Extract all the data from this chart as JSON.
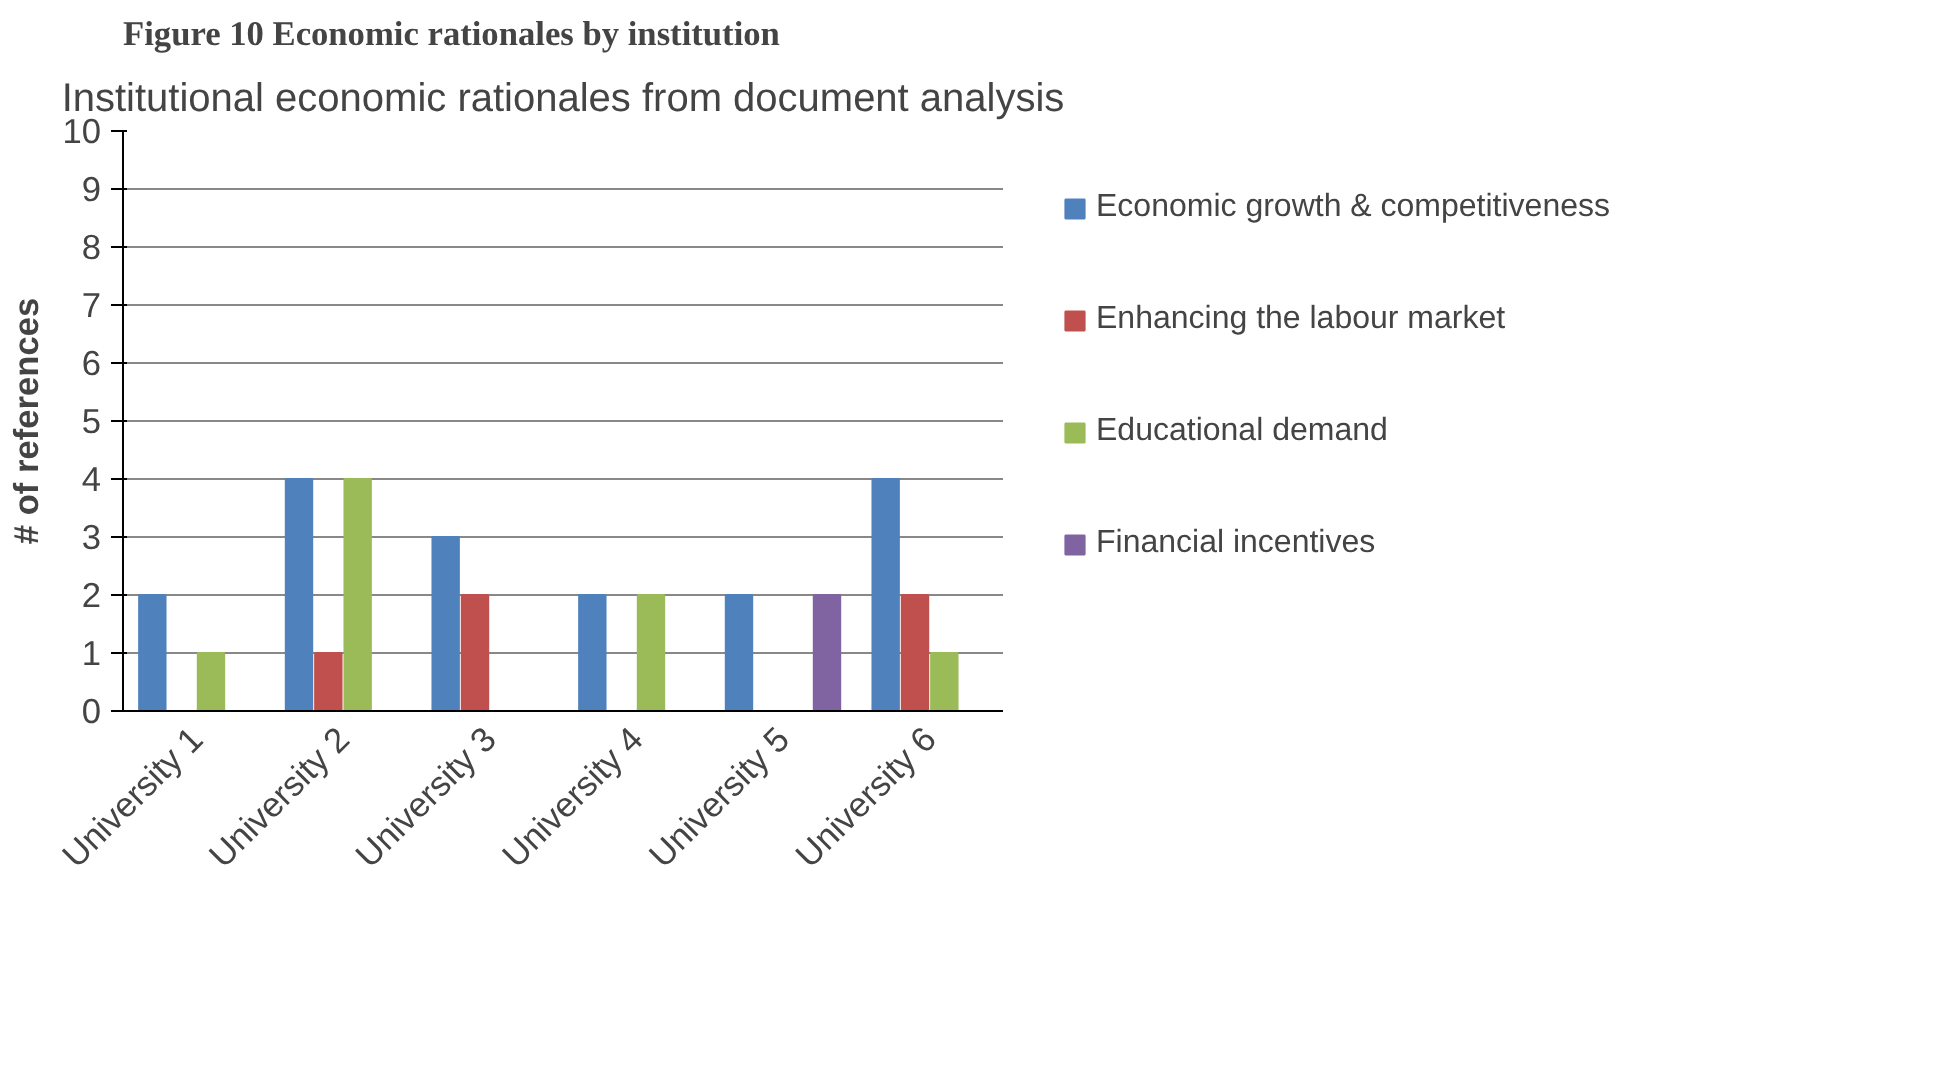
{
  "chart_data": {
    "type": "bar",
    "title": "Institutional economic rationales from document analysis",
    "ylabel": "# of references",
    "annotations": [
      "Figure 10 Economic rationales by institution"
    ],
    "categories": [
      "University 1",
      "University 2",
      "University 3",
      "University 4",
      "University 5",
      "University 6"
    ],
    "series": [
      {
        "name": "Economic growth & competitiveness",
        "color": "#4f81bd",
        "values": [
          2,
          4,
          3,
          2,
          2,
          4
        ]
      },
      {
        "name": "Enhancing the labour market",
        "color": "#c0504d",
        "values": [
          0,
          1,
          2,
          0,
          0,
          2
        ]
      },
      {
        "name": "Educational demand",
        "color": "#9bbb59",
        "values": [
          1,
          4,
          0,
          2,
          0,
          1
        ]
      },
      {
        "name": "Financial incentives",
        "color": "#8064a2",
        "values": [
          0,
          0,
          0,
          0,
          2,
          0
        ]
      }
    ],
    "ylim": [
      0,
      10
    ],
    "yticks": [
      0,
      1,
      2,
      3,
      4,
      5,
      6,
      7,
      8,
      9,
      10
    ],
    "grid": "y",
    "legend": "right"
  }
}
